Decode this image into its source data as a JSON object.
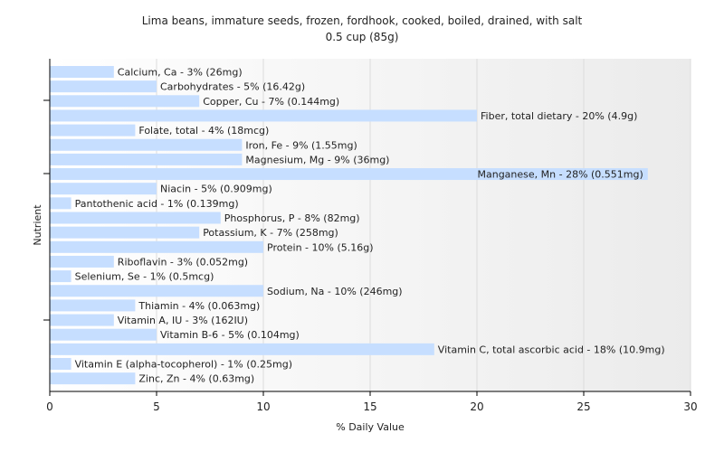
{
  "chart_data": {
    "type": "bar",
    "orientation": "horizontal",
    "title": "Lima beans, immature seeds, frozen, fordhook, cooked, boiled, drained, with salt",
    "subtitle": "0.5 cup (85g)",
    "xlabel": "% Daily Value",
    "ylabel": "Nutrient",
    "xlim": [
      0,
      30
    ],
    "xticks": [
      0,
      5,
      10,
      15,
      20,
      25,
      30
    ],
    "grid": true,
    "bar_color": "#c6deff",
    "background_gradient": [
      "#ffffff",
      "#ebebeb"
    ],
    "categories": [
      "Calcium, Ca",
      "Carbohydrates",
      "Copper, Cu",
      "Fiber, total dietary",
      "Folate, total",
      "Iron, Fe",
      "Magnesium, Mg",
      "Manganese, Mn",
      "Niacin",
      "Pantothenic acid",
      "Phosphorus, P",
      "Potassium, K",
      "Protein",
      "Riboflavin",
      "Selenium, Se",
      "Sodium, Na",
      "Thiamin",
      "Vitamin A, IU",
      "Vitamin B-6",
      "Vitamin C, total ascorbic acid",
      "Vitamin E (alpha-tocopherol)",
      "Zinc, Zn"
    ],
    "values": [
      3,
      5,
      7,
      20,
      4,
      9,
      9,
      28,
      5,
      1,
      8,
      7,
      10,
      3,
      1,
      10,
      4,
      3,
      5,
      18,
      1,
      4
    ],
    "labels": [
      "Calcium, Ca - 3% (26mg)",
      "Carbohydrates - 5% (16.42g)",
      "Copper, Cu - 7% (0.144mg)",
      "Fiber, total dietary - 20% (4.9g)",
      "Folate, total - 4% (18mcg)",
      "Iron, Fe - 9% (1.55mg)",
      "Magnesium, Mg - 9% (36mg)",
      "Manganese, Mn - 28% (0.551mg)",
      "Niacin - 5% (0.909mg)",
      "Pantothenic acid - 1% (0.139mg)",
      "Phosphorus, P - 8% (82mg)",
      "Potassium, K - 7% (258mg)",
      "Protein - 10% (5.16g)",
      "Riboflavin - 3% (0.052mg)",
      "Selenium, Se - 1% (0.5mcg)",
      "Sodium, Na - 10% (246mg)",
      "Thiamin - 4% (0.063mg)",
      "Vitamin A, IU - 3% (162IU)",
      "Vitamin B-6 - 5% (0.104mg)",
      "Vitamin C, total ascorbic acid - 18% (10.9mg)",
      "Vitamin E (alpha-tocopherol) - 1% (0.25mg)",
      "Zinc, Zn - 4% (0.63mg)"
    ]
  }
}
